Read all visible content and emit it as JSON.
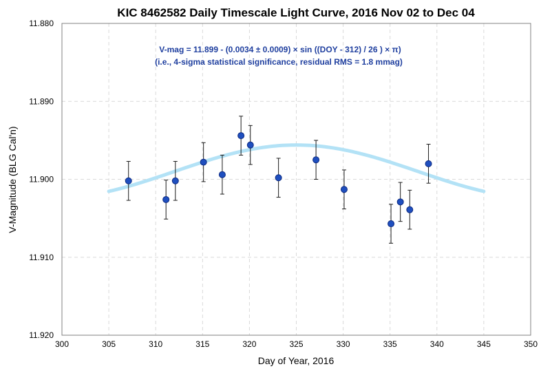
{
  "chart_data": {
    "type": "scatter",
    "title": "KIC 8462582 Daily Timescale Light Curve, 2016 Nov 02 to Dec 04",
    "xlabel": "Day of Year, 2016",
    "ylabel": "V-Magnitude (BLG Cal'n)",
    "xlim": [
      300,
      350
    ],
    "ylim": [
      11.88,
      11.92
    ],
    "y_inverted": true,
    "grid": true,
    "x_ticks": [
      "300",
      "305",
      "310",
      "315",
      "320",
      "325",
      "330",
      "335",
      "340",
      "345",
      "350"
    ],
    "y_ticks": [
      "11.880",
      "11.890",
      "11.900",
      "11.910",
      "11.920"
    ],
    "annotation_lines": [
      "V-mag = 11.899 - (0.0034 ± 0.0009) × sin ((DOY - 312) / 26 ) × π)",
      "(i.e., 4-sigma statistical significance, residual RMS = 1.8 mmag)"
    ],
    "annotation_color": "#1f3f9f",
    "series": [
      {
        "type": "scatter",
        "color": "#1f4fbf",
        "points": [
          {
            "x": 307.1,
            "y": 11.9002,
            "err": 0.0025
          },
          {
            "x": 311.1,
            "y": 11.9026,
            "err": 0.0025
          },
          {
            "x": 312.1,
            "y": 11.9002,
            "err": 0.0025
          },
          {
            "x": 315.1,
            "y": 11.8978,
            "err": 0.0025
          },
          {
            "x": 317.1,
            "y": 11.8994,
            "err": 0.0025
          },
          {
            "x": 319.1,
            "y": 11.8944,
            "err": 0.0025
          },
          {
            "x": 320.1,
            "y": 11.8956,
            "err": 0.0025
          },
          {
            "x": 323.1,
            "y": 11.8998,
            "err": 0.0025
          },
          {
            "x": 327.1,
            "y": 11.8975,
            "err": 0.0025
          },
          {
            "x": 330.1,
            "y": 11.9013,
            "err": 0.0025
          },
          {
            "x": 335.1,
            "y": 11.9057,
            "err": 0.0025
          },
          {
            "x": 336.1,
            "y": 11.9029,
            "err": 0.0025
          },
          {
            "x": 337.1,
            "y": 11.9039,
            "err": 0.0025
          },
          {
            "x": 339.1,
            "y": 11.898,
            "err": 0.0025
          }
        ]
      },
      {
        "type": "line",
        "color": "#b3e2f6",
        "model": {
          "base": 11.899,
          "amplitude": 0.0034,
          "phase": 312,
          "period_div": 26
        },
        "x_range": [
          305,
          345
        ]
      }
    ]
  }
}
